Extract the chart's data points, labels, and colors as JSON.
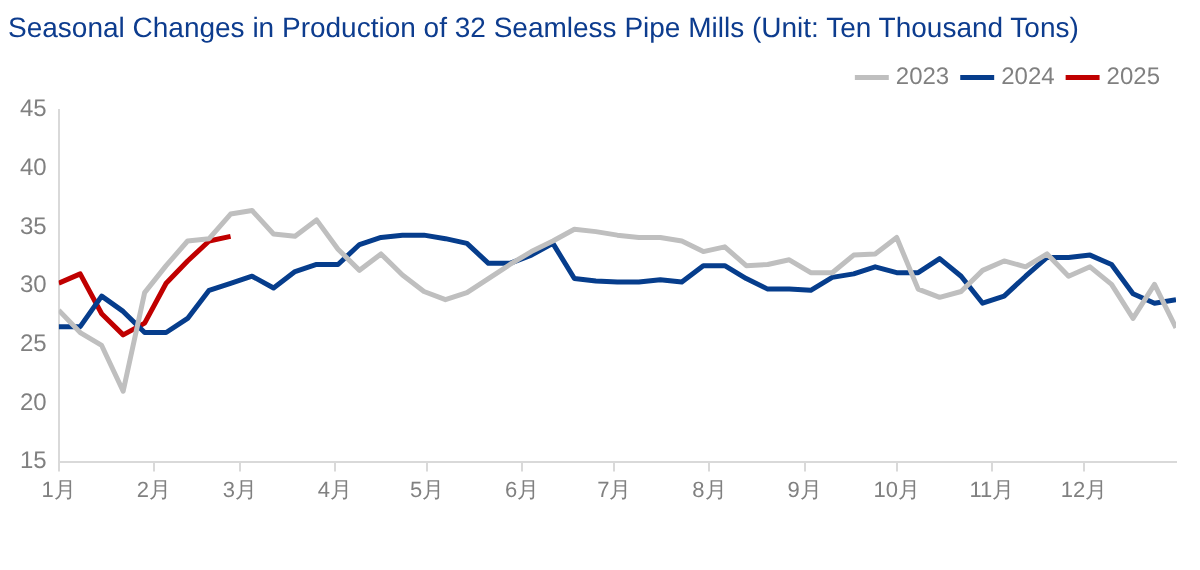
{
  "chart_data": {
    "type": "line",
    "title": "Seasonal Changes in Production of 32 Seamless Pipe Mills (Unit: Ten Thousand Tons)",
    "x": [
      "--01-01",
      "--01-08",
      "--01-15",
      "--01-22",
      "--01-29",
      "--02-05",
      "--02-12",
      "--02-19",
      "--02-26",
      "--03-05",
      "--03-12",
      "--03-19",
      "--03-26",
      "--04-02",
      "--04-09",
      "--04-16",
      "--04-23",
      "--04-30",
      "--05-07",
      "--05-14",
      "--05-21",
      "--05-28",
      "--06-04",
      "--06-11",
      "--06-18",
      "--06-25",
      "--07-02",
      "--07-09",
      "--07-16",
      "--07-23",
      "--07-30",
      "--08-06",
      "--08-13",
      "--08-20",
      "--08-27",
      "--09-03",
      "--09-10",
      "--09-17",
      "--09-24",
      "--10-01",
      "--10-08",
      "--10-15",
      "--10-22",
      "--10-29",
      "--11-05",
      "--11-12",
      "--11-19",
      "--11-26",
      "--12-03",
      "--12-10",
      "--12-17",
      "--12-24",
      "--12-31"
    ],
    "series": [
      {
        "name": "2023",
        "color": "#bfbfbf",
        "values": [
          27.9,
          26.0,
          24.9,
          21.0,
          29.4,
          31.7,
          33.8,
          34.0,
          36.1,
          36.4,
          34.4,
          34.2,
          35.6,
          33.1,
          31.3,
          32.7,
          30.9,
          29.5,
          28.8,
          29.4,
          30.6,
          31.8,
          32.9,
          33.8,
          34.8,
          34.6,
          34.3,
          34.1,
          34.1,
          33.8,
          32.9,
          33.3,
          31.7,
          31.8,
          32.2,
          31.1,
          31.1,
          32.6,
          32.7,
          34.1,
          29.7,
          29.0,
          29.5,
          31.3,
          32.1,
          31.6,
          32.7,
          30.8,
          31.6,
          30.1,
          27.2,
          30.1,
          26.4
        ]
      },
      {
        "name": "2024",
        "color": "#063d8c",
        "values": [
          26.5,
          26.5,
          29.1,
          27.8,
          26.0,
          26.0,
          27.2,
          29.6,
          30.2,
          30.8,
          29.8,
          31.2,
          31.8,
          31.8,
          33.5,
          34.1,
          34.3,
          34.3,
          34.0,
          33.6,
          31.9,
          31.9,
          32.6,
          33.6,
          30.6,
          30.4,
          30.3,
          30.3,
          30.5,
          30.3,
          31.7,
          31.7,
          30.6,
          29.7,
          29.7,
          29.6,
          30.7,
          31.0,
          31.6,
          31.1,
          31.1,
          32.3,
          30.8,
          28.5,
          29.1,
          30.8,
          32.4,
          32.4,
          32.6,
          31.8,
          29.3,
          28.5,
          28.8
        ]
      },
      {
        "name": "2025",
        "color": "#c00000",
        "x": [
          "--01-01",
          "--01-08",
          "--01-15",
          "--01-22",
          "--01-29",
          "--02-05",
          "--02-12",
          "--02-19",
          "--02-26"
        ],
        "values": [
          30.2,
          31.0,
          27.6,
          25.8,
          26.8,
          30.2,
          32.1,
          33.8,
          34.2
        ]
      }
    ],
    "xlim": [
      "--01-01",
      "--12-31"
    ],
    "xticks": [
      {
        "value": "--01-01",
        "label": "1月"
      },
      {
        "value": "--02-01",
        "label": "2月"
      },
      {
        "value": "--03-01",
        "label": "3月"
      },
      {
        "value": "--04-01",
        "label": "4月"
      },
      {
        "value": "--05-01",
        "label": "5月"
      },
      {
        "value": "--06-01",
        "label": "6月"
      },
      {
        "value": "--07-01",
        "label": "7月"
      },
      {
        "value": "--08-01",
        "label": "8月"
      },
      {
        "value": "--09-01",
        "label": "9月"
      },
      {
        "value": "--10-01",
        "label": "10月"
      },
      {
        "value": "--11-01",
        "label": "11月"
      },
      {
        "value": "--12-01",
        "label": "12月"
      }
    ],
    "ylim": [
      15,
      45
    ],
    "yticks": [
      15,
      20,
      25,
      30,
      35,
      40,
      45
    ],
    "grid": false,
    "legend": "top right",
    "marker": "none",
    "line_style": "solid"
  }
}
